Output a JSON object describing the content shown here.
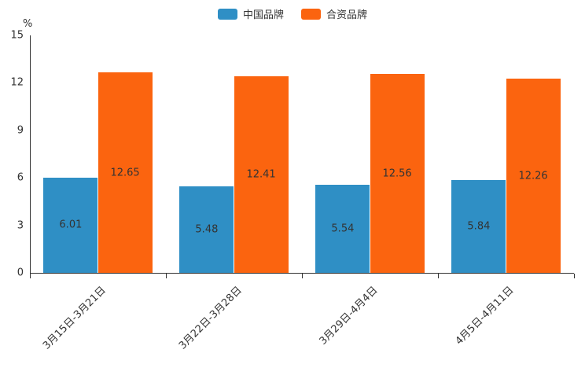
{
  "chart_data": {
    "type": "bar",
    "title": "",
    "categories": [
      "3月15日-3月21日",
      "3月22日-3月28日",
      "3月29日-4月4日",
      "4月5日-4月11日"
    ],
    "series": [
      {
        "name": "中国品牌",
        "color": "#2f8fc5",
        "values": [
          6.01,
          5.48,
          5.54,
          5.84
        ]
      },
      {
        "name": "合资品牌",
        "color": "#fb640f",
        "values": [
          12.65,
          12.41,
          12.56,
          12.26
        ]
      }
    ],
    "xlabel": "",
    "ylabel": "%",
    "ylim": [
      0,
      15
    ],
    "yticks": [
      0,
      3,
      6,
      9,
      12,
      15
    ],
    "grid": false,
    "legend_position": "top",
    "value_label_decimals": 2
  },
  "colors": {
    "text": "#333333",
    "axis": "#333333",
    "background": "#ffffff"
  }
}
